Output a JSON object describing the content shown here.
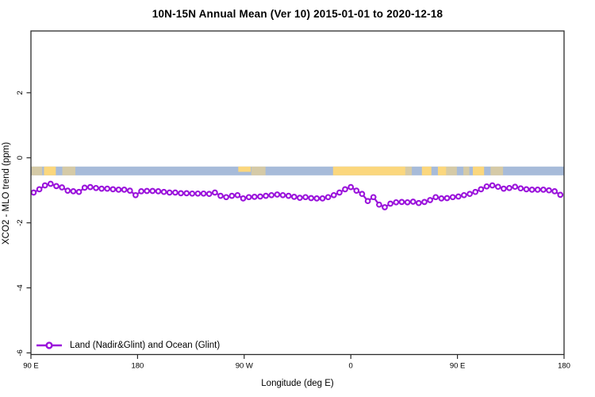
{
  "title": "10N-15N Annual Mean (Ver 10)   2015-01-01 to 2020-12-18",
  "legend": {
    "label": "Land (Nadir&Glint) and Ocean (Glint)"
  },
  "chart_data": {
    "type": "line",
    "title": "10N-15N Annual Mean (Ver 10)   2015-01-01 to 2020-12-18",
    "xlabel": "Longitude (deg E)",
    "ylabel": "XCO2 - MLO trend (ppm)",
    "x_axis": {
      "note": "axis wraps eastward starting at 90E; internal coordinate is degrees from 90 to 540",
      "range_deg": [
        90,
        540
      ],
      "ticks": [
        {
          "deg": 90,
          "label": "90 E"
        },
        {
          "deg": 180,
          "label": "180"
        },
        {
          "deg": 270,
          "label": "90 W"
        },
        {
          "deg": 360,
          "label": "0"
        },
        {
          "deg": 450,
          "label": "90 E"
        },
        {
          "deg": 540,
          "label": "180"
        }
      ]
    },
    "y_axis": {
      "range": [
        -6.05,
        3.9
      ],
      "ticks": [
        {
          "v": 2,
          "label": "2"
        },
        {
          "v": 0,
          "label": "0"
        },
        {
          "v": -2,
          "label": "-2"
        },
        {
          "v": -4,
          "label": "-4"
        },
        {
          "v": -6,
          "label": "-6"
        }
      ]
    },
    "grid": false,
    "legend_position": "bottom-left-inside",
    "surface_band": {
      "meaning": "land/ocean strip along latitude band",
      "y_top": -0.27,
      "y_bottom": -0.54,
      "ocean_color": "#A7BBD9",
      "land_color": "#FBD77D",
      "land_patches_deg": [
        [
          90.5,
          93,
          "speckle"
        ],
        [
          93,
          99.5,
          "speckle"
        ],
        [
          101,
          111,
          "solid"
        ],
        [
          116.5,
          127.5,
          "speckle"
        ],
        [
          265,
          275.5,
          "top"
        ],
        [
          276,
          288,
          "speckle"
        ],
        [
          345,
          406,
          "solid"
        ],
        [
          406,
          411.5,
          "speckle"
        ],
        [
          420,
          428,
          "solid"
        ],
        [
          433.5,
          440.5,
          "solid"
        ],
        [
          440.5,
          449.5,
          "speckle"
        ],
        [
          455,
          460,
          "speckle"
        ],
        [
          463,
          472.5,
          "solid"
        ],
        [
          478,
          488.5,
          "speckle"
        ]
      ]
    },
    "series": [
      {
        "name": "Land (Nadir&Glint) and Ocean (Glint)",
        "color": "#9A12DB",
        "marker": "open-circle",
        "x_start_deg": 92.3,
        "x_step_deg": 4.78,
        "values": [
          -1.07,
          -0.97,
          -0.85,
          -0.8,
          -0.87,
          -0.91,
          -1.01,
          -1.03,
          -1.05,
          -0.92,
          -0.9,
          -0.93,
          -0.95,
          -0.95,
          -0.97,
          -0.98,
          -0.98,
          -1.01,
          -1.15,
          -1.03,
          -1.02,
          -1.02,
          -1.03,
          -1.05,
          -1.07,
          -1.07,
          -1.09,
          -1.09,
          -1.1,
          -1.1,
          -1.1,
          -1.11,
          -1.07,
          -1.17,
          -1.21,
          -1.17,
          -1.15,
          -1.25,
          -1.21,
          -1.2,
          -1.19,
          -1.17,
          -1.15,
          -1.13,
          -1.15,
          -1.17,
          -1.2,
          -1.23,
          -1.21,
          -1.24,
          -1.25,
          -1.25,
          -1.21,
          -1.15,
          -1.07,
          -0.97,
          -0.9,
          -1.01,
          -1.11,
          -1.33,
          -1.21,
          -1.44,
          -1.52,
          -1.41,
          -1.37,
          -1.36,
          -1.37,
          -1.35,
          -1.39,
          -1.36,
          -1.3,
          -1.21,
          -1.25,
          -1.24,
          -1.21,
          -1.19,
          -1.15,
          -1.11,
          -1.05,
          -0.97,
          -0.88,
          -0.85,
          -0.89,
          -0.95,
          -0.93,
          -0.89,
          -0.94,
          -0.97,
          -0.98,
          -0.98,
          -0.98,
          -1.0,
          -1.03,
          -1.14
        ]
      }
    ]
  },
  "colors": {
    "axis": "#2B2B2B",
    "text": "#000000",
    "series_purple": "#9A12DB",
    "band_ocean": "#A7BBD9",
    "band_land": "#FBD77D"
  }
}
